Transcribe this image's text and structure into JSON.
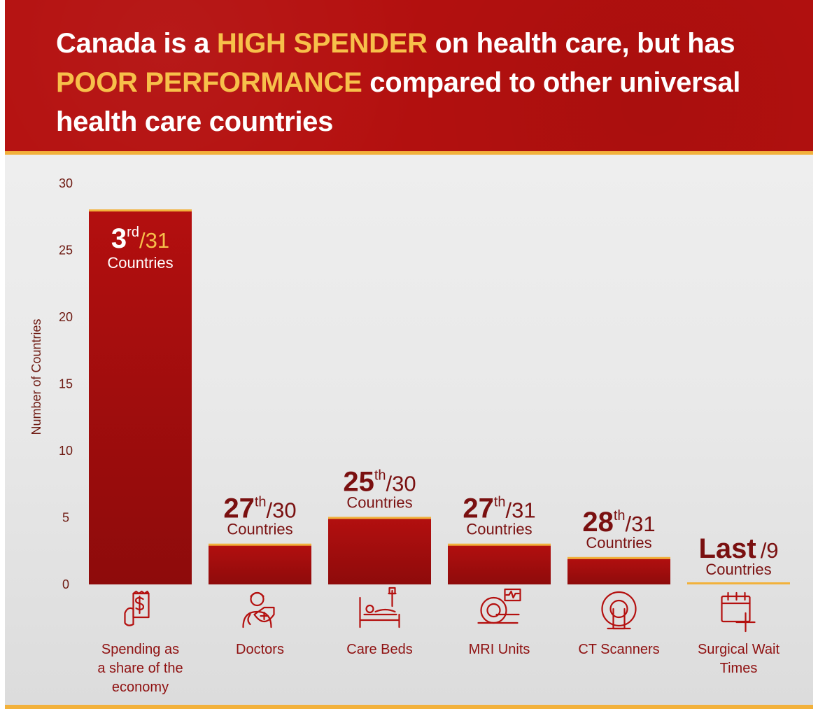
{
  "title": {
    "parts": [
      {
        "text": "Canada is a ",
        "highlight": false
      },
      {
        "text": "HIGH SPENDER",
        "highlight": true
      },
      {
        "text": " on health care, but has ",
        "highlight": false
      },
      {
        "text": "POOR PERFORMANCE",
        "highlight": true
      },
      {
        "text": " compared to other universal health care countries",
        "highlight": false
      }
    ]
  },
  "colors": {
    "header_red": "#b4100f",
    "highlight_yellow": "#f7c04a",
    "bar_red": "#b30f0f",
    "accent_orange": "#f2b13b",
    "label_dark_red": "#7a1010"
  },
  "chart_data": {
    "type": "bar",
    "ylabel": "Number of Countries",
    "ylim": [
      0,
      30
    ],
    "yticks": [
      0,
      5,
      10,
      15,
      20,
      25,
      30
    ],
    "categories": [
      {
        "label_lines": [
          "Spending as",
          "a share of the",
          "economy"
        ],
        "icon": "receipt-dollar-icon"
      },
      {
        "label_lines": [
          "Doctors"
        ],
        "icon": "doctor-icon"
      },
      {
        "label_lines": [
          "Care Beds"
        ],
        "icon": "hospital-bed-icon"
      },
      {
        "label_lines": [
          "MRI Units"
        ],
        "icon": "mri-machine-icon"
      },
      {
        "label_lines": [
          "CT Scanners"
        ],
        "icon": "ct-scanner-icon"
      },
      {
        "label_lines": [
          "Surgical Wait",
          "Times"
        ],
        "icon": "calendar-plus-icon"
      }
    ],
    "values": [
      28,
      3,
      5,
      3,
      2,
      0
    ],
    "ranks": [
      {
        "rank": "3",
        "suffix": "rd",
        "total": "/31",
        "unit": "Countries",
        "inside": true
      },
      {
        "rank": "27",
        "suffix": "th",
        "total": "/30",
        "unit": "Countries",
        "inside": false
      },
      {
        "rank": "25",
        "suffix": "th",
        "total": "/30",
        "unit": "Countries",
        "inside": false
      },
      {
        "rank": "27",
        "suffix": "th",
        "total": "/31",
        "unit": "Countries",
        "inside": false
      },
      {
        "rank": "28",
        "suffix": "th",
        "total": "/31",
        "unit": "Countries",
        "inside": false
      },
      {
        "rank": "Last",
        "suffix": "",
        "total": "/9",
        "unit": "Countries",
        "inside": false
      }
    ]
  }
}
